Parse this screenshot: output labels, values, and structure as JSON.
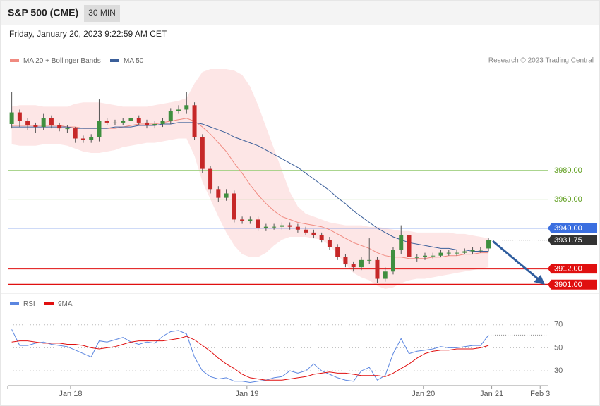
{
  "header": {
    "title": "S&P 500 (CME)",
    "timeframe": "30 MIN",
    "date": "Friday, January 20, 2023 9:22:59 AM CET",
    "credit": "Research © 2023 Trading Central"
  },
  "chart_data": [
    {
      "type": "candlestick",
      "xlim": [
        -0.5,
        67.5
      ],
      "ylim": [
        3896,
        4050
      ],
      "up_color": "#3f8f3f",
      "down_color": "#c62828",
      "candles": {
        "open": [
          4012,
          4020,
          4014,
          4011,
          4010,
          4016,
          4011,
          4009,
          4009,
          4002,
          4001,
          4003,
          4014,
          4013,
          4013,
          4014,
          4016,
          4013,
          4011,
          4012,
          4014,
          4021,
          4022,
          4025,
          4003,
          3981,
          3967,
          3961,
          3964,
          3946,
          3945,
          3946,
          3940,
          3941,
          3941,
          3942,
          3941,
          3939,
          3937,
          3935,
          3932,
          3927,
          3920,
          3915,
          3913,
          3918,
          3918,
          3905,
          3910,
          3925,
          3935,
          3920,
          3920,
          3921,
          3921,
          3923,
          3923,
          3923,
          3924,
          3925,
          3926
        ],
        "high": [
          4034,
          4022,
          4016,
          4013,
          4019,
          4018,
          4013,
          4011,
          4010,
          4004,
          4005,
          4029,
          4016,
          4015,
          4016,
          4019,
          4018,
          4015,
          4014,
          4016,
          4023,
          4025,
          4034,
          4027,
          4005,
          3983,
          3969,
          3967,
          3966,
          3948,
          3948,
          3948,
          3943,
          3943,
          3944,
          3944,
          3943,
          3941,
          3939,
          3937,
          3934,
          3929,
          3922,
          3917,
          3920,
          3933,
          3920,
          3913,
          3927,
          3942,
          3937,
          3922,
          3923,
          3923,
          3925,
          3925,
          3925,
          3926,
          3927,
          3927,
          3933
        ],
        "low": [
          4009,
          4010,
          4008,
          4006,
          4008,
          4009,
          4007,
          4006,
          3999,
          3999,
          3999,
          4000,
          4011,
          4011,
          4011,
          4012,
          4011,
          4009,
          4009,
          4010,
          4012,
          4019,
          4019,
          4001,
          3978,
          3964,
          3958,
          3959,
          3944,
          3943,
          3943,
          3938,
          3938,
          3939,
          3939,
          3939,
          3937,
          3935,
          3933,
          3930,
          3925,
          3918,
          3913,
          3910,
          3911,
          3915,
          3902,
          3903,
          3908,
          3922,
          3918,
          3917,
          3918,
          3919,
          3920,
          3921,
          3921,
          3922,
          3922,
          3923,
          3924
        ],
        "close": [
          4020,
          4014,
          4011,
          4010,
          4016,
          4011,
          4009,
          4009,
          4002,
          4001,
          4003,
          4014,
          4013,
          4013,
          4014,
          4016,
          4013,
          4011,
          4012,
          4014,
          4021,
          4022,
          4025,
          4003,
          3981,
          3967,
          3961,
          3964,
          3946,
          3945,
          3946,
          3940,
          3941,
          3941,
          3942,
          3941,
          3939,
          3937,
          3935,
          3932,
          3927,
          3920,
          3915,
          3913,
          3918,
          3918,
          3905,
          3910,
          3925,
          3935,
          3920,
          3920,
          3921,
          3921,
          3923,
          3923,
          3923,
          3924,
          3925,
          3925,
          3931.75
        ]
      },
      "series": [
        {
          "name": "MA 20 + Bollinger Bands",
          "color": "#f08a80",
          "band_color": "#fde2e2",
          "values": [
            4011,
            4011,
            4011,
            4011,
            4011,
            4011,
            4011,
            4010,
            4010,
            4009,
            4009,
            4009,
            4009,
            4009,
            4010,
            4011,
            4012,
            4012,
            4012,
            4013,
            4014,
            4015,
            4016,
            4014,
            4010,
            4005,
            3999,
            3993,
            3985,
            3978,
            3970,
            3963,
            3957,
            3952,
            3948,
            3946,
            3944,
            3943,
            3942,
            3941,
            3939,
            3936,
            3933,
            3930,
            3928,
            3926,
            3923,
            3921,
            3920,
            3920,
            3919,
            3919,
            3919,
            3920,
            3920,
            3921,
            3921,
            3922,
            3922,
            3923,
            3923
          ],
          "upper": [
            4024,
            4025,
            4025,
            4025,
            4024,
            4024,
            4024,
            4024,
            4026,
            4027,
            4027,
            4027,
            4026,
            4025,
            4024,
            4024,
            4024,
            4024,
            4025,
            4026,
            4027,
            4028,
            4030,
            4040,
            4048,
            4050,
            4050,
            4050,
            4049,
            4046,
            4038,
            4025,
            4010,
            3995,
            3980,
            3965,
            3955,
            3950,
            3948,
            3946,
            3944,
            3943,
            3942,
            3942,
            3942,
            3941,
            3941,
            3940,
            3939,
            3938,
            3938,
            3937,
            3937,
            3937,
            3937,
            3937,
            3936,
            3936,
            3935,
            3934,
            3933
          ],
          "lower": [
            3998,
            3997,
            3997,
            3997,
            3998,
            3998,
            3998,
            3997,
            3995,
            3993,
            3992,
            3992,
            3993,
            3994,
            3996,
            3997,
            3998,
            3999,
            3999,
            4000,
            4001,
            4002,
            4002,
            3990,
            3972,
            3960,
            3948,
            3937,
            3928,
            3922,
            3920,
            3920,
            3923,
            3928,
            3932,
            3934,
            3934,
            3934,
            3933,
            3932,
            3928,
            3922,
            3915,
            3909,
            3906,
            3904,
            3900,
            3898,
            3899,
            3902,
            3904,
            3905,
            3905,
            3906,
            3907,
            3908,
            3909,
            3910,
            3911,
            3912,
            3913
          ]
        },
        {
          "name": "MA 50",
          "color": "#3b5f9a",
          "values": [
            4010,
            4010,
            4010,
            4010,
            4010,
            4010,
            4010,
            4010,
            4009,
            4009,
            4009,
            4009,
            4009,
            4010,
            4010,
            4010,
            4011,
            4011,
            4011,
            4012,
            4012,
            4013,
            4013,
            4013,
            4012,
            4010,
            4008,
            4006,
            4003,
            4001,
            3999,
            3997,
            3994,
            3991,
            3988,
            3985,
            3982,
            3978,
            3974,
            3970,
            3966,
            3961,
            3957,
            3952,
            3948,
            3944,
            3940,
            3937,
            3934,
            3932,
            3930,
            3929,
            3928,
            3927,
            3926,
            3926,
            3925,
            3925,
            3924,
            3924,
            3924
          ]
        }
      ],
      "levels": [
        {
          "value": 3980,
          "label": "3980.00",
          "color": "#9fcf7f",
          "text_color": "#5f9e1e",
          "boxed": false,
          "width": 1
        },
        {
          "value": 3960,
          "label": "3960.00",
          "color": "#9fcf7f",
          "text_color": "#5f9e1e",
          "boxed": false,
          "width": 1
        },
        {
          "value": 3940,
          "label": "3940.00",
          "color": "#3b6fe0",
          "text_color": "#ffffff",
          "boxed": true,
          "width": 1
        },
        {
          "value": 3912,
          "label": "3912.00",
          "color": "#e01010",
          "text_color": "#ffffff",
          "boxed": true,
          "width": 2
        },
        {
          "value": 3901,
          "label": "3901.00",
          "color": "#e01010",
          "text_color": "#ffffff",
          "boxed": true,
          "width": 2
        }
      ],
      "last_color": "#333333"
    },
    {
      "type": "line",
      "ylim": [
        16,
        79
      ],
      "yticks": [
        30,
        50,
        70
      ],
      "grid": true,
      "xticks": [
        {
          "value": 7.4,
          "label": "Jan 18"
        },
        {
          "value": 29.6,
          "label": "Jan 19"
        },
        {
          "value": 51.8,
          "label": "Jan 20"
        },
        {
          "value": 60.4,
          "label": "Jan 21"
        },
        {
          "value": 66.5,
          "label": "Feb 3"
        }
      ],
      "series": [
        {
          "name": "RSI",
          "color": "#5b86e0",
          "values": [
            66,
            52,
            52,
            54,
            55,
            53,
            52,
            51,
            48,
            45,
            42,
            56,
            55,
            57,
            59,
            55,
            53,
            55,
            54,
            60,
            64,
            65,
            62,
            42,
            30,
            25,
            23,
            24,
            21,
            21,
            20,
            21,
            22,
            24,
            25,
            30,
            28,
            30,
            36,
            30,
            27,
            24,
            22,
            21,
            30,
            33,
            22,
            26,
            45,
            58,
            45,
            47,
            48,
            49,
            51,
            50,
            50,
            51,
            52,
            52,
            61
          ]
        },
        {
          "name": "9MA",
          "color": "#e01010",
          "values": [
            55,
            56,
            56,
            55,
            54,
            54,
            54,
            53,
            53,
            52,
            50,
            49,
            50,
            51,
            53,
            55,
            56,
            56,
            56,
            56,
            57,
            58,
            60,
            57,
            52,
            47,
            41,
            36,
            32,
            27,
            24,
            23,
            22,
            22,
            22,
            23,
            24,
            25,
            27,
            28,
            29,
            28,
            28,
            27,
            26,
            26,
            26,
            25,
            28,
            32,
            36,
            41,
            45,
            47,
            48,
            48,
            49,
            49,
            49,
            50,
            52
          ]
        }
      ]
    }
  ]
}
